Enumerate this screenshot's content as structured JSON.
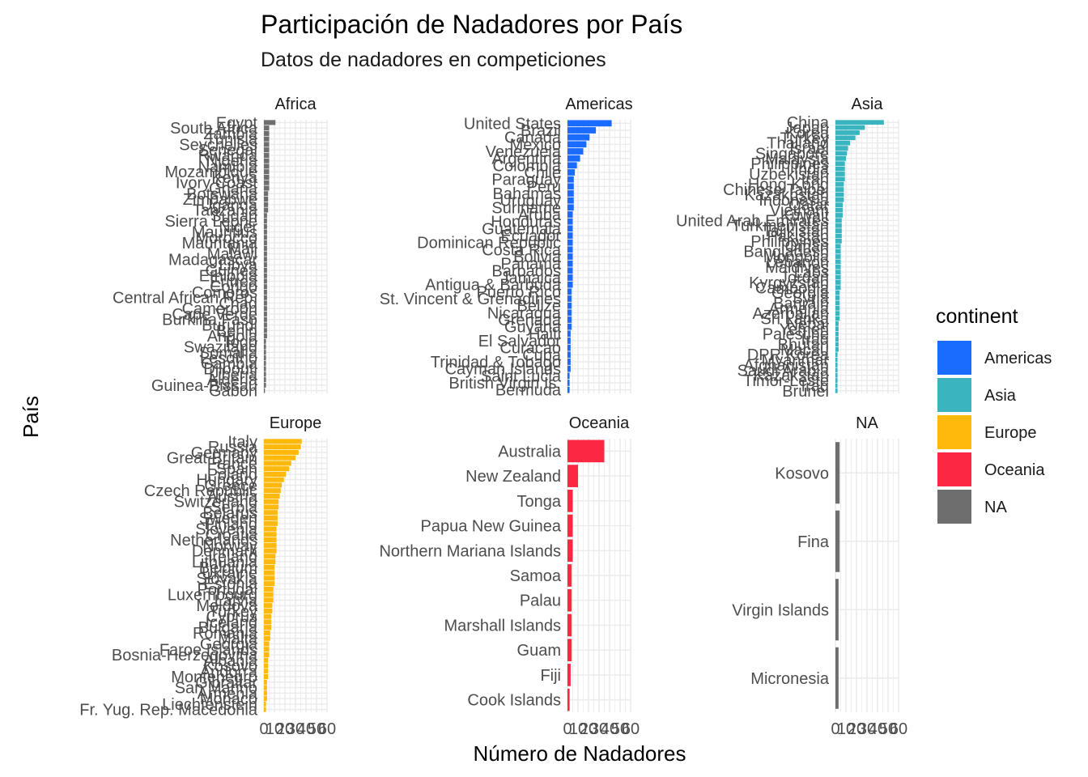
{
  "chart_data": {
    "type": "bar",
    "orientation": "horizontal",
    "facet_wrap": true,
    "title": "Participación de Nadadores por País",
    "subtitle": "Datos de nadadores en competiciones",
    "xlabel": "Número de Nadadores",
    "ylabel": "País",
    "xlim": [
      0,
      60
    ],
    "x_ticks": [
      "0",
      "10",
      "20",
      "30",
      "40",
      "50",
      "60"
    ],
    "grid": true,
    "legend": {
      "title": "continent",
      "placement": "right",
      "entries": [
        {
          "name": "Americas",
          "color": "#1A6BFF"
        },
        {
          "name": "Asia",
          "color": "#3AB4BE"
        },
        {
          "name": "Europe",
          "color": "#FFB90C"
        },
        {
          "name": "Oceania",
          "color": "#FA2843"
        },
        {
          "name": "NA",
          "color": "#6E6E6E"
        }
      ]
    },
    "panels": [
      {
        "strip": "Africa",
        "color": "#6E6E6E",
        "categories": [
          "Egypt",
          "South Africa",
          "Zambia",
          "Tunisia",
          "Seychelles",
          "Senegal",
          "Rwanda",
          "Nigeria",
          "Namibia",
          "Mozambique",
          "Kenya",
          "Ivory Coast",
          "Ghana",
          "Botswana",
          "Zimbabwe",
          "Uganda",
          "Tanzania",
          "Sudan",
          "Sierra Leone",
          "Niger",
          "Mauritius",
          "Morocco",
          "Mauritania",
          "Mali",
          "Malawi",
          "Madagascar",
          "Libya",
          "Guinea",
          "Ethiopia",
          "Eritrea",
          "Congo",
          "Comoros",
          "Central African Rep.",
          "Chad",
          "Cameroon",
          "Cape Verde",
          "Burkina Faso",
          "Burundi",
          "Benin",
          "Angola",
          "Togo",
          "Swaziland",
          "Somalia",
          "Lesotho",
          "Gambia",
          "Djibouti",
          "Liberia",
          "Algeria",
          "Guinea-Bissau",
          "Gabon"
        ],
        "values": [
          11,
          5,
          5,
          5,
          5,
          5,
          5,
          5,
          5,
          5,
          5,
          5,
          5,
          4,
          4,
          4,
          4,
          3,
          3,
          3,
          3,
          3,
          3,
          3,
          3,
          3,
          3,
          3,
          3,
          3,
          3,
          3,
          3,
          3,
          3,
          3,
          3,
          3,
          3,
          3,
          2,
          2,
          2,
          2,
          2,
          2,
          2,
          2,
          2,
          1
        ]
      },
      {
        "strip": "Americas",
        "color": "#1A6BFF",
        "categories": [
          "United States",
          "Brazil",
          "Canada",
          "Mexico",
          "Venezuela",
          "Argentina",
          "Colombia",
          "Chile",
          "Paraguay",
          "Peru",
          "Bahamas",
          "Uruguay",
          "Suriname",
          "Aruba",
          "Honduras",
          "Guatemala",
          "Ecuador",
          "Dominican Republic",
          "Costa Rica",
          "Bolivia",
          "Panama",
          "Barbados",
          "Jamaica",
          "Antigua & Barbuda",
          "Puerto Rico",
          "St. Vincent & Grenadines",
          "Belize",
          "Nicaragua",
          "Grenada",
          "Guyana",
          "Haiti",
          "El Salvador",
          "Curacao",
          "Cuba",
          "Trinidad & Tobago",
          "Cayman Islands",
          "Saint Lucia",
          "British Virgin Is.",
          "Bermuda"
        ],
        "values": [
          42,
          27,
          21,
          18,
          15,
          12,
          9,
          7,
          6,
          6,
          6,
          6,
          6,
          5,
          5,
          5,
          5,
          5,
          5,
          5,
          5,
          5,
          5,
          5,
          4,
          4,
          4,
          4,
          4,
          4,
          3,
          3,
          3,
          3,
          3,
          3,
          2,
          2,
          2
        ]
      },
      {
        "strip": "Asia",
        "color": "#3AB4BE",
        "categories": [
          "China",
          "Japan",
          "Korea",
          "Turkey",
          "Thailand",
          "Israel",
          "Singapore",
          "Malaysia",
          "Philippines",
          "India",
          "Uzbekistan",
          "Iran",
          "Hong Kong",
          "Chinese Taipei",
          "Kazakhstan",
          "Indonesia",
          "Qatar",
          "Vietnam",
          "Kuwait",
          "United Arab Emirates",
          "Turkmenistan",
          "Tajikistan",
          "Pakistan",
          "Philippines ",
          "Oman",
          "Bangladesh",
          "Mongolia",
          "Lebanon",
          "Maldives",
          "Laos",
          "Jordan",
          "Kyrgyzstan",
          "Cambodia",
          "Georgia",
          "Syria",
          "Bahrain",
          "Armenia",
          "Azerbaijan",
          "Sri Lanka",
          "Nepal",
          "Yemen",
          "Palestine",
          "Iraq",
          "Bhutan",
          "Macau",
          "DPR Korea",
          "Myanmar",
          "Afghanistan",
          "Saudi Arabia",
          "Kazakstan",
          "Timor-Leste",
          "Iraq ",
          "Brunei"
        ],
        "values": [
          46,
          28,
          23,
          19,
          14,
          12,
          11,
          10,
          9,
          9,
          9,
          9,
          8,
          8,
          8,
          8,
          7,
          7,
          7,
          6,
          6,
          6,
          6,
          6,
          5,
          5,
          5,
          5,
          5,
          5,
          5,
          5,
          5,
          4,
          4,
          4,
          4,
          4,
          4,
          3,
          3,
          3,
          3,
          3,
          3,
          2,
          2,
          2,
          2,
          2,
          2,
          2,
          2
        ]
      },
      {
        "strip": "Europe",
        "color": "#FFB90C",
        "categories": [
          "Italy",
          "Russia",
          "Germany",
          "Great Britain",
          "France",
          "Spain",
          "Poland",
          "Hungary",
          "Greece",
          "Czech Republic",
          "Austria",
          "Switzerland",
          "Serbia",
          "Belarus",
          "Sweden",
          "Finland",
          "Slovenia",
          "Croatia",
          "Netherlands",
          "Norway",
          "Denmark",
          "Ireland",
          "Lithuania",
          "Belgium",
          "Ukraine",
          "Slovakia",
          "Estonia",
          "Portugal",
          "Luxembourg",
          "Latvia",
          "Moldova",
          "Turkey",
          "Cyprus",
          "Iceland",
          "Bulgaria",
          "Romania",
          "Malta",
          "Georgia",
          "Faroe Islands",
          "Bosnia-Herzegovina",
          "Albania",
          "Kosovo",
          "Andorra",
          "Montenegro",
          "Gibraltar",
          "San Marino",
          "Armenia",
          "Monaco",
          "Liechtenstein",
          "Fr. Yug. Rep. Macedonia"
        ],
        "values": [
          36,
          35,
          33,
          30,
          26,
          24,
          21,
          19,
          17,
          16,
          15,
          14,
          14,
          13,
          13,
          13,
          12,
          12,
          12,
          12,
          12,
          11,
          11,
          10,
          10,
          10,
          10,
          9,
          9,
          9,
          8,
          8,
          7,
          7,
          7,
          6,
          6,
          5,
          5,
          5,
          4,
          4,
          4,
          4,
          3,
          3,
          3,
          3,
          2,
          2
        ]
      },
      {
        "strip": "Oceania",
        "color": "#FA2843",
        "categories": [
          "Australia",
          "New Zealand",
          "Tonga",
          "Papua New Guinea",
          "Northern Mariana Islands",
          "Samoa",
          "Palau",
          "Marshall Islands",
          "Guam",
          "Fiji",
          "Cook Islands"
        ],
        "values": [
          35,
          10,
          5,
          5,
          5,
          4,
          4,
          4,
          4,
          3,
          2
        ]
      },
      {
        "strip": "NA",
        "color": "#6E6E6E",
        "categories": [
          "Kosovo",
          "Fina",
          "Virgin Islands",
          "Micronesia"
        ],
        "values": [
          4,
          4,
          3,
          3
        ]
      }
    ]
  }
}
